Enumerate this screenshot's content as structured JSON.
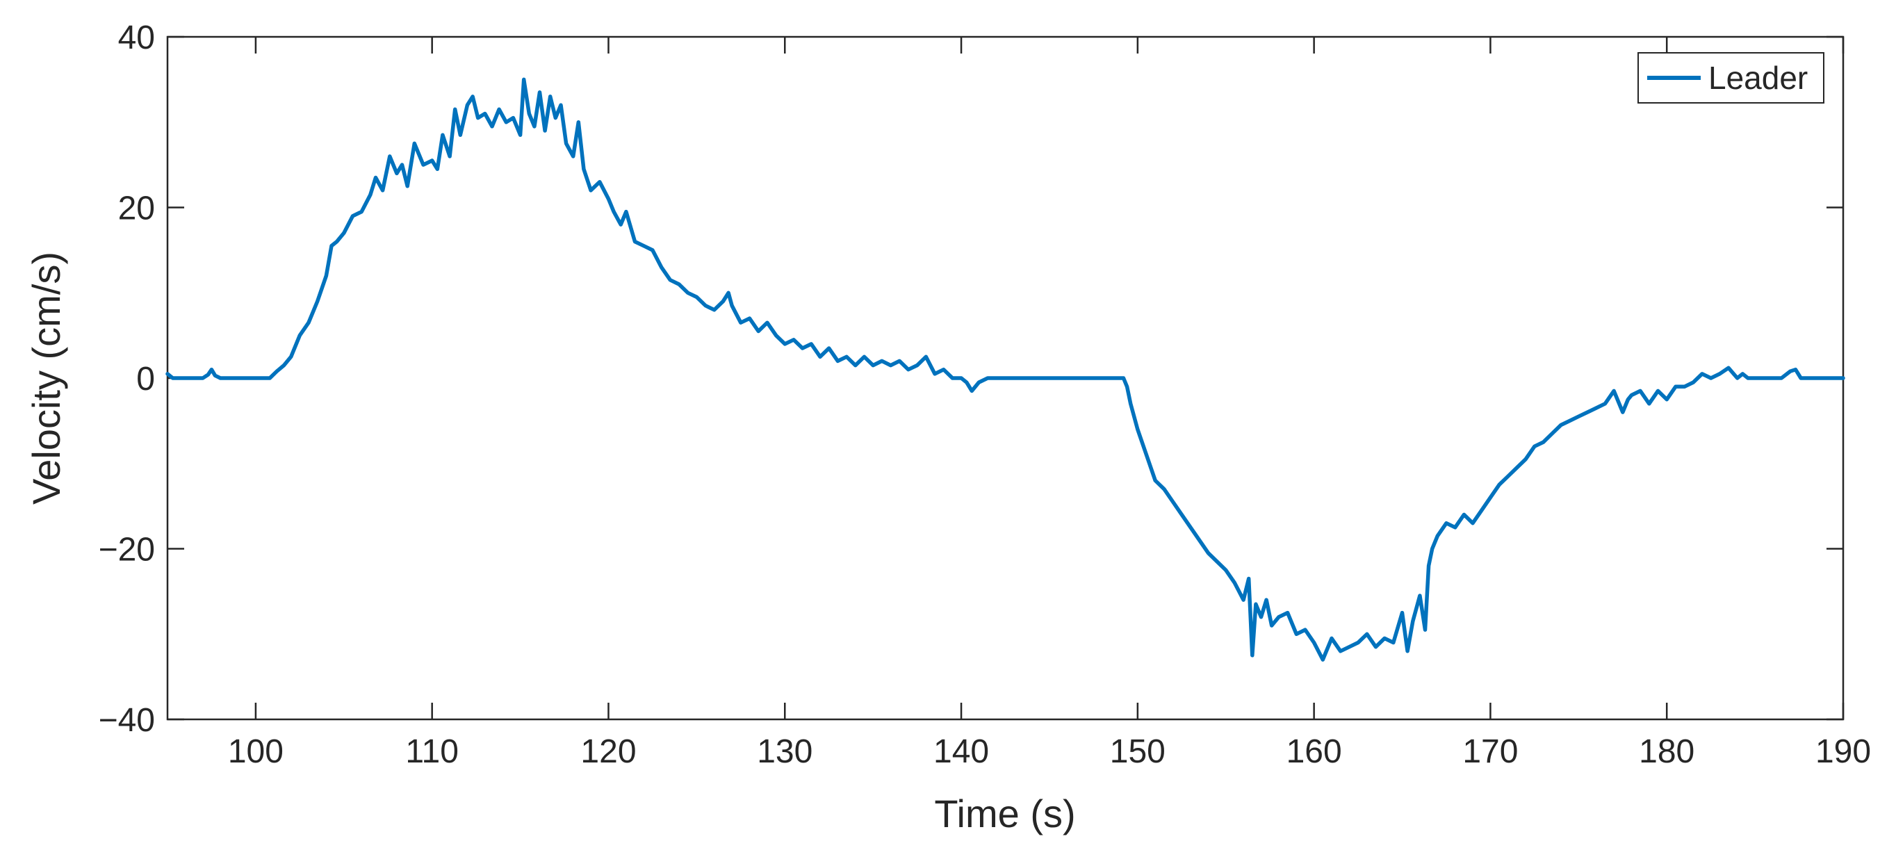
{
  "chart_data": {
    "type": "line",
    "title": "",
    "xlabel": "Time (s)",
    "ylabel": "Velocity (cm/s)",
    "xlim": [
      95,
      190
    ],
    "ylim": [
      -40,
      40
    ],
    "xticks": [
      100,
      110,
      120,
      130,
      140,
      150,
      160,
      170,
      180,
      190
    ],
    "yticks": [
      -40,
      -20,
      0,
      20,
      40
    ],
    "xtick_labels": [
      "100",
      "110",
      "120",
      "130",
      "140",
      "150",
      "160",
      "170",
      "180",
      "190"
    ],
    "ytick_labels": [
      "−40",
      "−20",
      "0",
      "20",
      "40"
    ],
    "grid": false,
    "legend": {
      "placement": "top-right",
      "entries": [
        "Leader"
      ]
    },
    "series": [
      {
        "name": "Leader",
        "color": "#0072BD",
        "x": [
          95,
          95.3,
          95.6,
          96,
          97,
          97.3,
          97.5,
          97.7,
          98,
          99,
          100,
          100.8,
          101.2,
          101.6,
          102,
          102.5,
          103,
          103.5,
          104,
          104.3,
          104.6,
          105,
          105.5,
          106,
          106.5,
          106.8,
          107.2,
          107.6,
          108,
          108.3,
          108.6,
          109,
          109.5,
          110,
          110.3,
          110.6,
          111,
          111.3,
          111.6,
          112,
          112.3,
          112.6,
          113,
          113.4,
          113.8,
          114.2,
          114.6,
          115,
          115.2,
          115.5,
          115.8,
          116.1,
          116.4,
          116.7,
          117,
          117.3,
          117.6,
          118,
          118.3,
          118.6,
          119,
          119.5,
          120,
          120.3,
          120.7,
          121,
          121.5,
          122,
          122.5,
          123,
          123.5,
          124,
          124.5,
          125,
          125.5,
          126,
          126.5,
          126.8,
          127,
          127.5,
          128,
          128.5,
          129,
          129.5,
          130,
          130.5,
          131,
          131.5,
          132,
          132.5,
          133,
          133.5,
          134,
          134.5,
          135,
          135.5,
          136,
          136.5,
          137,
          137.5,
          138,
          138.5,
          139,
          139.5,
          140,
          140.3,
          140.6,
          141,
          141.5,
          142,
          145,
          148,
          149,
          149.2,
          149.4,
          149.6,
          150,
          150.5,
          151,
          151.5,
          152,
          152.5,
          153,
          153.5,
          154,
          154.5,
          155,
          155.5,
          156,
          156.3,
          156.5,
          156.7,
          157,
          157.3,
          157.6,
          158,
          158.5,
          159,
          159.5,
          160,
          160.5,
          161,
          161.5,
          162,
          162.5,
          163,
          163.5,
          164,
          164.5,
          165,
          165.3,
          165.6,
          166,
          166.3,
          166.5,
          166.7,
          167,
          167.5,
          168,
          168.5,
          169,
          169.5,
          170,
          170.5,
          171,
          171.5,
          172,
          172.5,
          173,
          173.5,
          174,
          174.5,
          175,
          175.5,
          176,
          176.5,
          177,
          177.5,
          177.8,
          178,
          178.5,
          179,
          179.5,
          180,
          180.5,
          181,
          181.5,
          182,
          182.5,
          183,
          183.5,
          184,
          184.3,
          184.6,
          185,
          186,
          186.5,
          187,
          187.3,
          187.6,
          188,
          189,
          190
        ],
        "y": [
          0.5,
          0,
          0,
          0,
          0,
          0.4,
          1,
          0.3,
          0,
          0,
          0,
          0,
          0.8,
          1.5,
          2.5,
          5,
          6.5,
          9,
          12,
          15.5,
          16,
          17,
          19,
          19.5,
          21.5,
          23.5,
          22,
          26,
          24,
          25,
          22.5,
          27.5,
          25,
          25.5,
          24.5,
          28.5,
          26,
          31.5,
          28.5,
          32,
          33,
          30.5,
          31,
          29.5,
          31.5,
          30,
          30.5,
          28.5,
          35,
          31,
          29.5,
          33.5,
          29,
          33,
          30.5,
          32,
          27.5,
          26,
          30,
          24.5,
          22,
          23,
          21,
          19.5,
          18,
          19.5,
          16,
          15.5,
          15,
          13,
          11.5,
          11,
          10,
          9.5,
          8.5,
          8,
          9,
          10,
          8.5,
          6.5,
          7,
          5.5,
          6.5,
          5,
          4,
          4.5,
          3.5,
          4,
          2.5,
          3.5,
          2,
          2.5,
          1.5,
          2.5,
          1.5,
          2,
          1.5,
          2,
          1,
          1.5,
          2.5,
          0.5,
          1,
          0,
          0,
          -0.5,
          -1.5,
          -0.5,
          0,
          0,
          0,
          0,
          0,
          0,
          -1,
          -3,
          -6,
          -9,
          -12,
          -13,
          -14.5,
          -16,
          -17.5,
          -19,
          -20.5,
          -21.5,
          -22.5,
          -24,
          -26,
          -23.5,
          -32.5,
          -26.5,
          -28,
          -26,
          -29,
          -28,
          -27.5,
          -30,
          -29.5,
          -31,
          -33,
          -30.5,
          -32,
          -31.5,
          -31,
          -30,
          -31.5,
          -30.5,
          -31,
          -27.5,
          -32,
          -28.5,
          -25.5,
          -29.5,
          -22,
          -20,
          -18.5,
          -17,
          -17.5,
          -16,
          -17,
          -15.5,
          -14,
          -12.5,
          -11.5,
          -10.5,
          -9.5,
          -8,
          -7.5,
          -6.5,
          -5.5,
          -5,
          -4.5,
          -4,
          -3.5,
          -3,
          -1.5,
          -4,
          -2.5,
          -2,
          -1.5,
          -3,
          -1.5,
          -2.5,
          -1,
          -1,
          -0.5,
          0.5,
          0,
          0.5,
          1.2,
          0,
          0.5,
          0,
          0,
          0,
          0,
          0.8,
          1,
          0,
          0,
          0,
          0
        ]
      }
    ]
  }
}
